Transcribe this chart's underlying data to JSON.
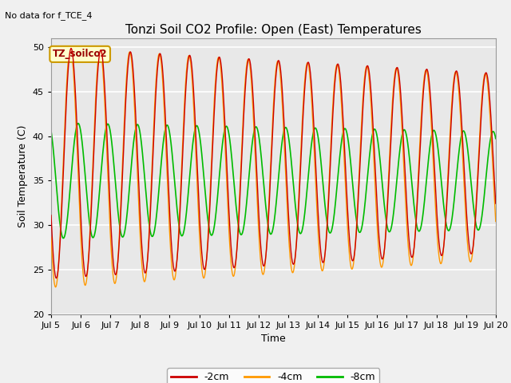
{
  "title": "Tonzi Soil CO2 Profile: Open (East) Temperatures",
  "subtitle": "No data for f_TCE_4",
  "xlabel": "Time",
  "ylabel": "Soil Temperature (C)",
  "ylim": [
    20,
    51
  ],
  "yticks": [
    20,
    25,
    30,
    35,
    40,
    45,
    50
  ],
  "xlim_start": 5.0,
  "xlim_end": 20.0,
  "xtick_positions": [
    5,
    6,
    7,
    8,
    9,
    10,
    11,
    12,
    13,
    14,
    15,
    16,
    17,
    18,
    19,
    20
  ],
  "xtick_labels": [
    "Jul 5",
    "Jul 6",
    "Jul 7",
    "Jul 8",
    "Jul 9",
    "Jul 10",
    "Jul 11",
    "Jul 12",
    "Jul 13",
    "Jul 14",
    "Jul 15",
    "Jul 16",
    "Jul 17",
    "Jul 18",
    "Jul 19",
    "Jul 20"
  ],
  "line_2cm_color": "#cc0000",
  "line_4cm_color": "#ff9900",
  "line_8cm_color": "#00bb00",
  "legend_label_2cm": "-2cm",
  "legend_label_4cm": "-4cm",
  "legend_label_8cm": "-8cm",
  "annotation_label": "TZ_soilco2",
  "axes_facecolor": "#e8e8e8",
  "fig_facecolor": "#f0f0f0",
  "grid_color": "#ffffff",
  "title_fontsize": 11,
  "axis_label_fontsize": 9,
  "tick_fontsize": 8,
  "subtitle_fontsize": 8,
  "legend_fontsize": 9
}
